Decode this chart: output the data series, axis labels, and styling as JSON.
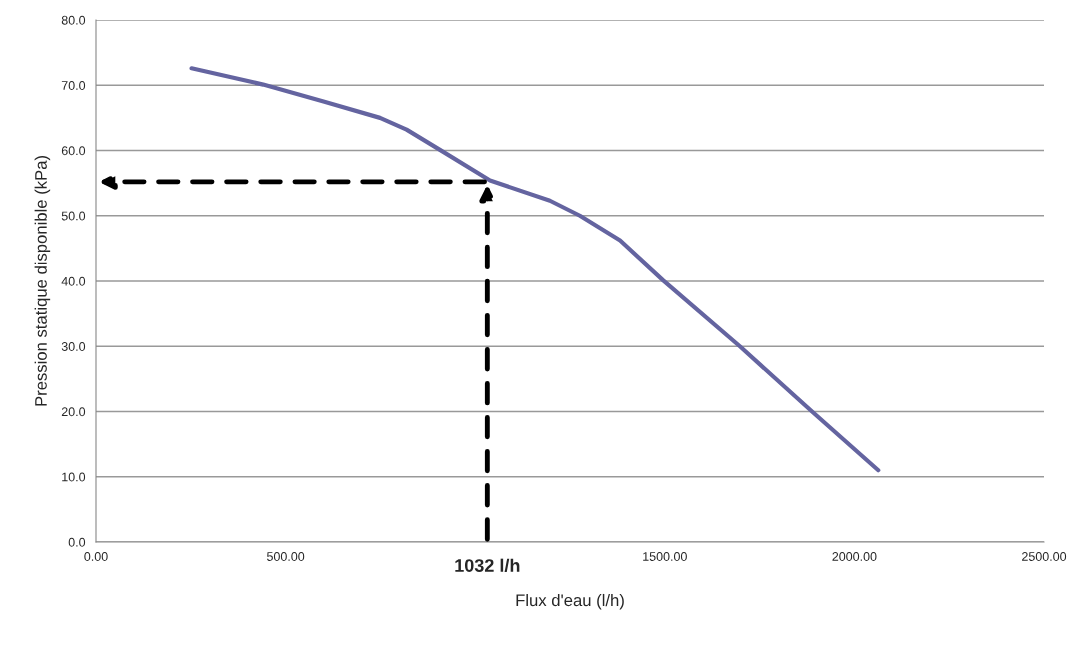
{
  "chart_data": {
    "type": "line",
    "xlabel": "Flux d'eau (l/h)",
    "ylabel": "Pression statique disponible (kPa)",
    "x": [
      252,
      441,
      600,
      749,
      819,
      907,
      1039,
      1197,
      1276,
      1382,
      1496,
      1698,
      1892,
      2063
    ],
    "series": [
      {
        "color": "#6464a0",
        "values": [
          72.6,
          70.1,
          67.5,
          65.0,
          63.2,
          60.1,
          55.4,
          52.3,
          50.0,
          46.2,
          40.1,
          30.0,
          19.8,
          11.0
        ]
      }
    ],
    "xlim": [
      0,
      2500
    ],
    "xticks": [
      {
        "value": 0,
        "label": "0.00"
      },
      {
        "value": 500,
        "label": "500.00"
      },
      {
        "value": 1500,
        "label": "1500.00"
      },
      {
        "value": 2000,
        "label": "2000.00"
      },
      {
        "value": 2500,
        "label": "2500.00"
      }
    ],
    "ylim": [
      0,
      80
    ],
    "yticks": [
      {
        "value": 0,
        "label": "0.0"
      },
      {
        "value": 10,
        "label": "10.0"
      },
      {
        "value": 20,
        "label": "20.0"
      },
      {
        "value": 30,
        "label": "30.0"
      },
      {
        "value": 40,
        "label": "40.0"
      },
      {
        "value": 50,
        "label": "50.0"
      },
      {
        "value": 60,
        "label": "60.0"
      },
      {
        "value": 70,
        "label": "70.0"
      },
      {
        "value": 80,
        "label": "80.0"
      }
    ],
    "grid": "y",
    "marker": "none",
    "line_style": "solid",
    "legend": false,
    "annotations": [
      {
        "text": "1032 l/h",
        "x": 1032,
        "y": 55.2
      }
    ]
  }
}
